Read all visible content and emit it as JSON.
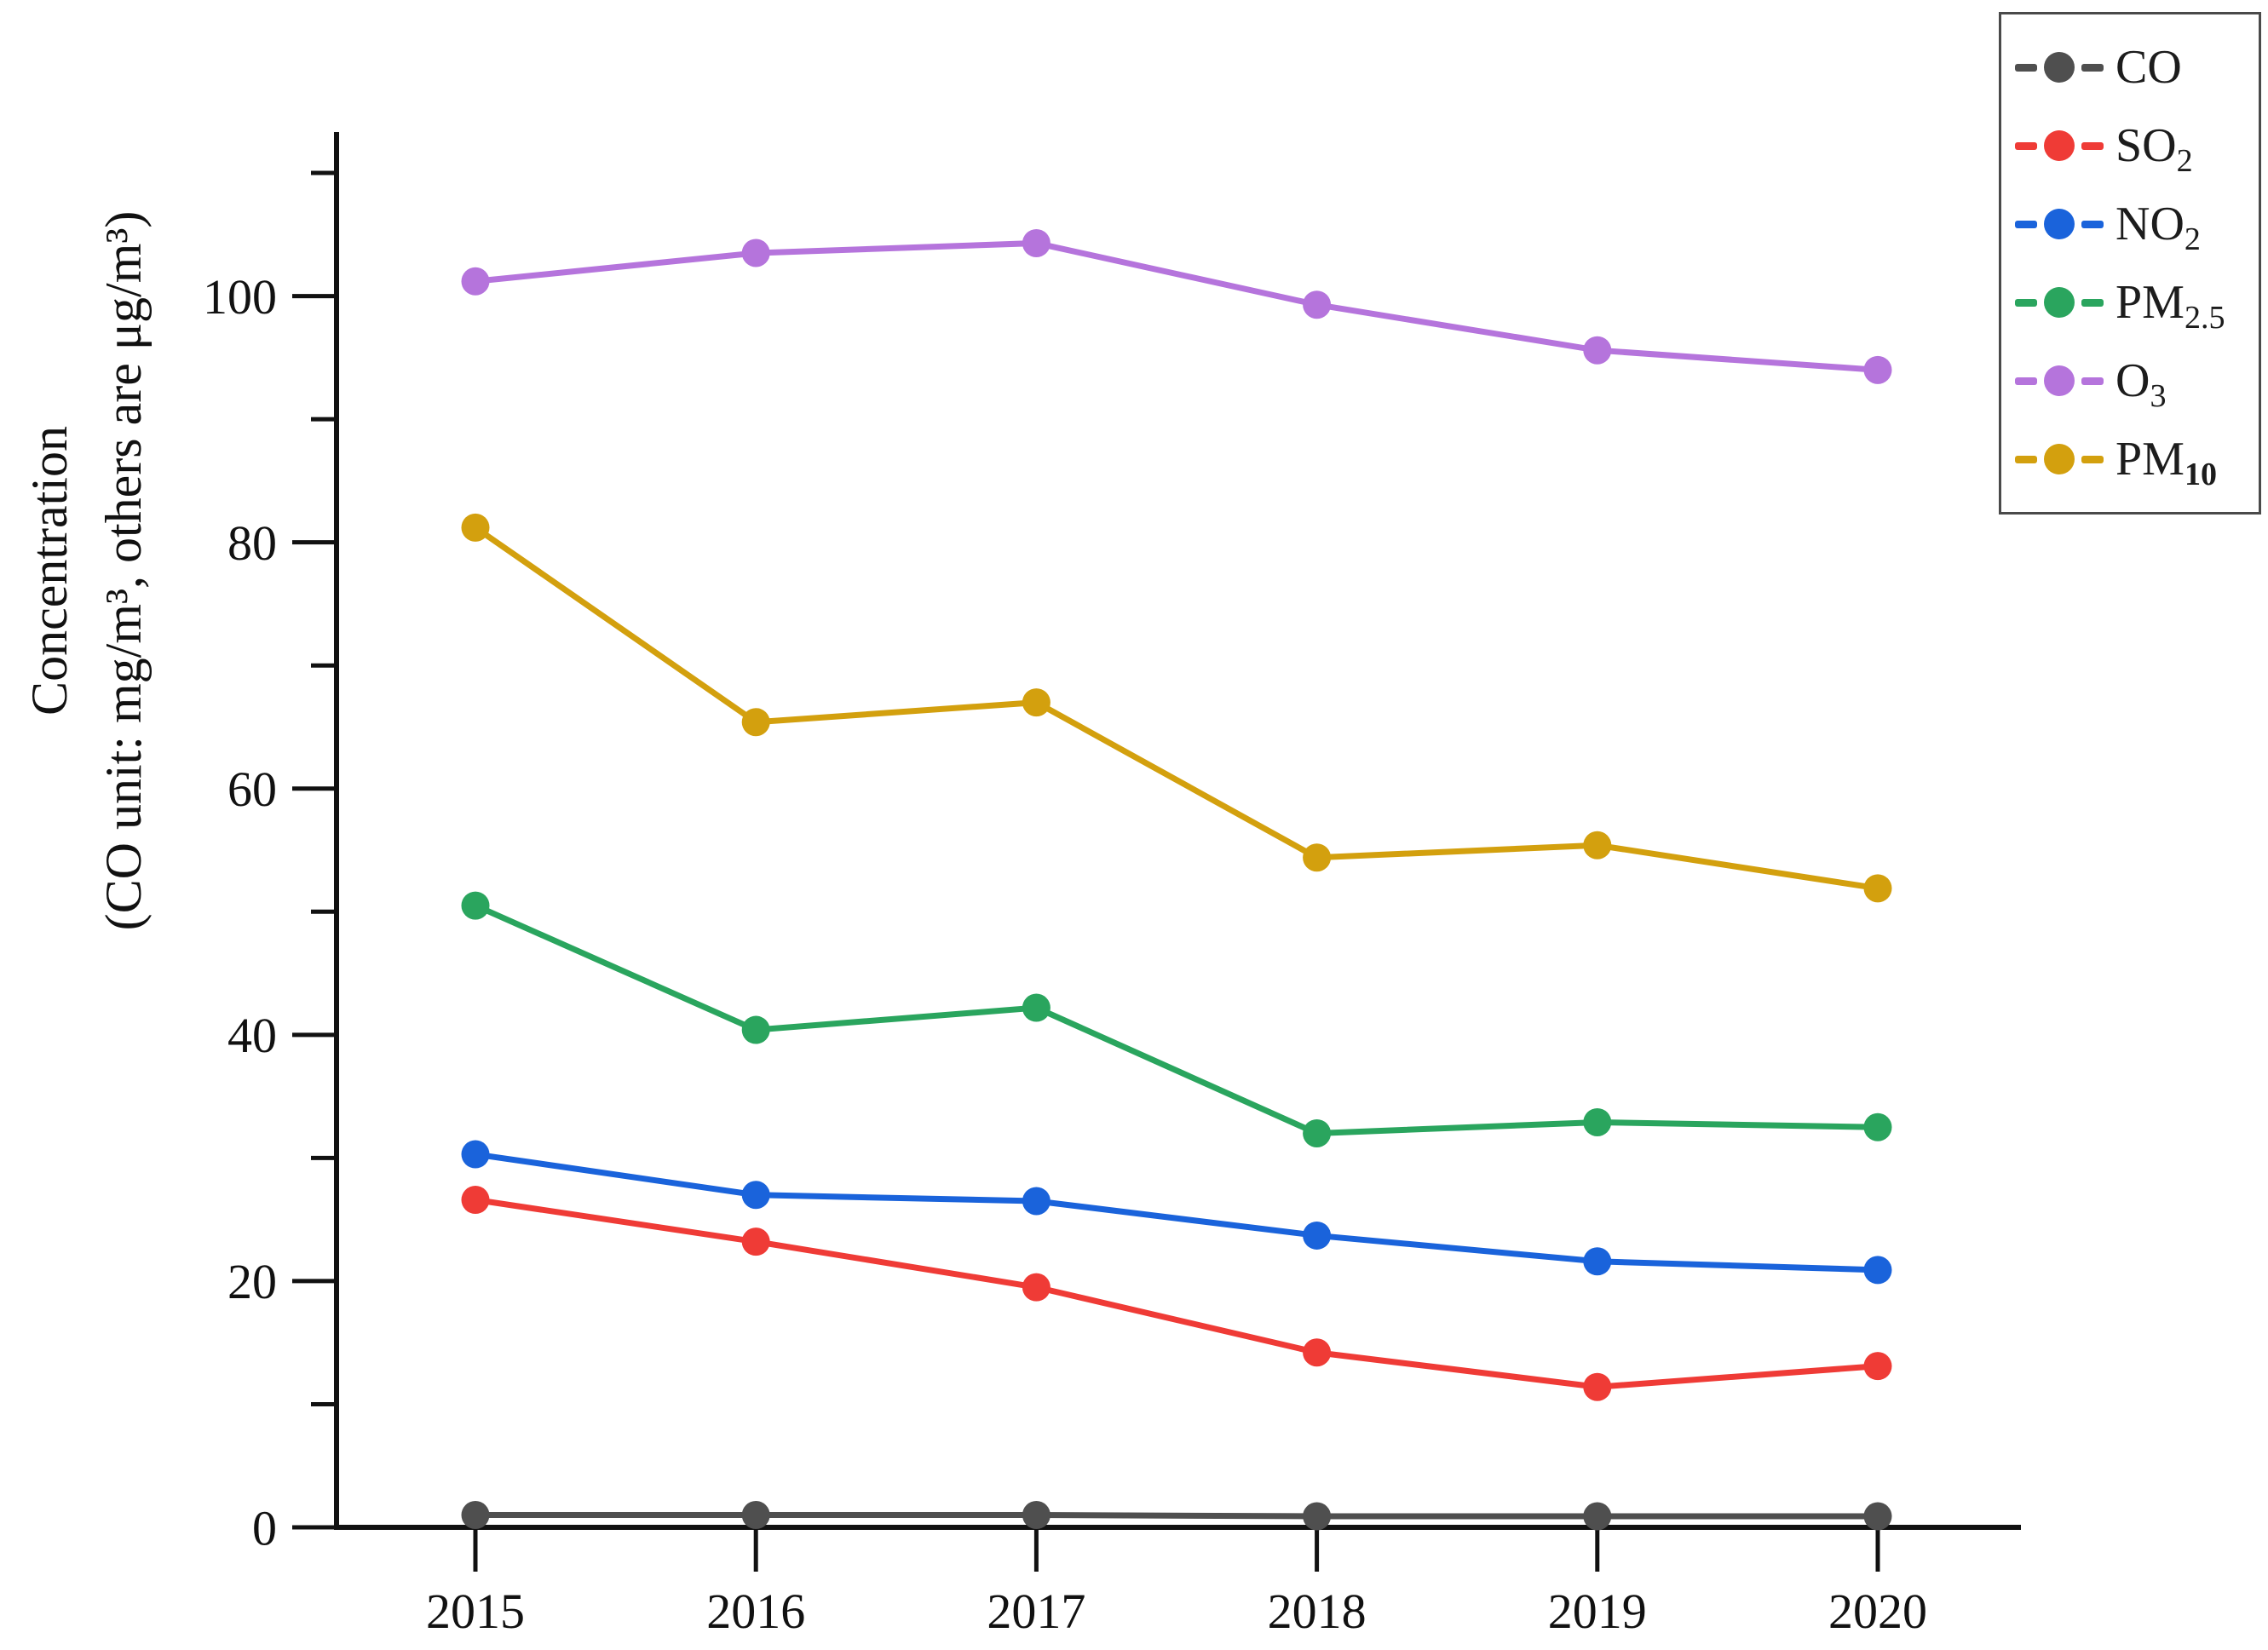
{
  "figure": {
    "y_axis_title": {
      "line1": "Concentration",
      "line2": "(CO unit: mg/m³, others are μg/m³)"
    },
    "text_color": "#111111",
    "axis_color": "#111111",
    "background_color": "#ffffff"
  },
  "chart_data": {
    "type": "line",
    "x": [
      2015,
      2016,
      2017,
      2018,
      2019,
      2020
    ],
    "x_tick_labels": [
      "2015",
      "2016",
      "2017",
      "2018",
      "2019",
      "2020"
    ],
    "y_major_ticks": [
      0,
      20,
      40,
      60,
      80,
      100
    ],
    "y_major_tick_labels": [
      "0",
      "20",
      "40",
      "60",
      "80",
      "100"
    ],
    "y_minor_ticks": [
      10,
      30,
      50,
      70,
      90,
      110
    ],
    "ylim": [
      0,
      113
    ],
    "xlabel": "",
    "ylabel": "Concentration (CO unit: mg/m³, others are μg/m³)",
    "grid": false,
    "legend_position": "upper-right",
    "marker": "circle",
    "series": [
      {
        "name": "CO",
        "label_main": "CO",
        "label_sub": "",
        "sub_bold": false,
        "color": "#4f4f4f",
        "values": [
          1.0,
          1.0,
          1.0,
          0.9,
          0.9,
          0.9
        ]
      },
      {
        "name": "SO2",
        "label_main": "SO",
        "label_sub": "2",
        "sub_bold": false,
        "color": "#ef3b36",
        "values": [
          26.6,
          23.2,
          19.5,
          14.2,
          11.4,
          13.1
        ]
      },
      {
        "name": "NO2",
        "label_main": "NO",
        "label_sub": "2",
        "sub_bold": false,
        "color": "#1a63db",
        "values": [
          30.3,
          27.0,
          26.5,
          23.7,
          21.6,
          20.9
        ]
      },
      {
        "name": "PM2.5",
        "label_main": "PM",
        "label_sub": "2.5",
        "sub_bold": false,
        "color": "#2aa55e",
        "values": [
          50.5,
          40.4,
          42.2,
          32.0,
          32.9,
          32.5
        ]
      },
      {
        "name": "O3",
        "label_main": "O",
        "label_sub": "3",
        "sub_bold": false,
        "color": "#b574dc",
        "values": [
          101.2,
          103.5,
          104.3,
          99.3,
          95.6,
          94.0
        ]
      },
      {
        "name": "PM10",
        "label_main": "PM",
        "label_sub": "10",
        "sub_bold": true,
        "color": "#d3a00e",
        "values": [
          81.2,
          65.4,
          67.0,
          54.4,
          55.4,
          51.9
        ]
      }
    ]
  }
}
